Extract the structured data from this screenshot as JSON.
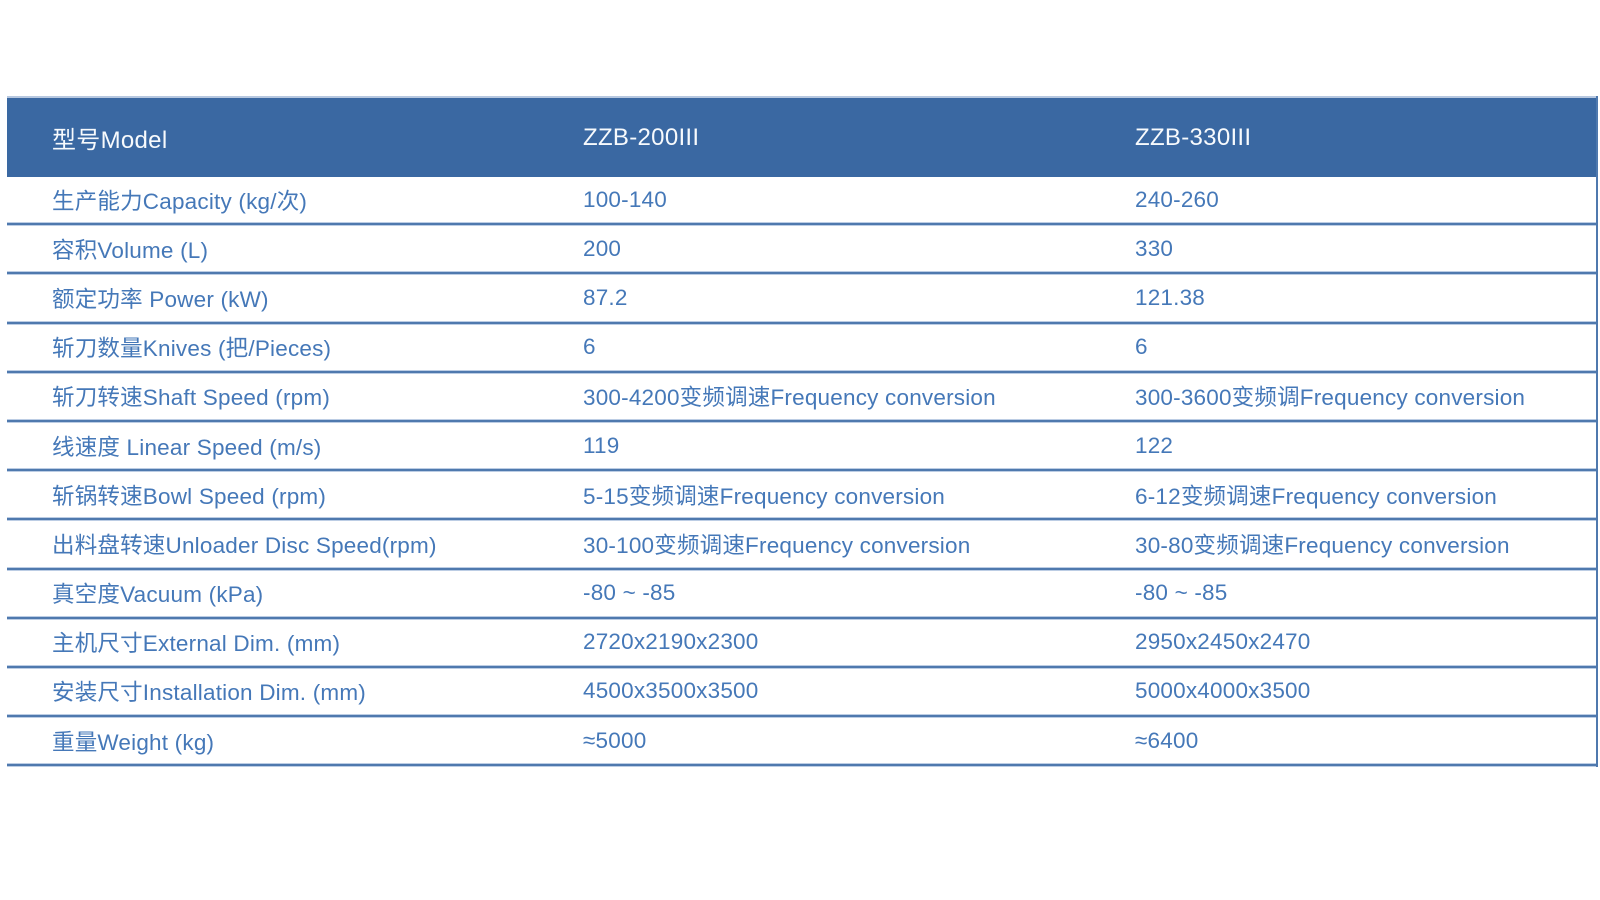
{
  "table": {
    "header": {
      "model_label": "型号Model",
      "model_1": "ZZB-200III",
      "model_2": "ZZB-330III"
    },
    "rows": [
      {
        "label": "生产能力Capacity (kg/次)",
        "v1": "100-140",
        "v2": "240-260"
      },
      {
        "label": "容积Volume (L)",
        "v1": "200",
        "v2": "330"
      },
      {
        "label": "额定功率 Power (kW)",
        "v1": "87.2",
        "v2": "121.38"
      },
      {
        "label": "斩刀数量Knives (把/Pieces)",
        "v1": "6",
        "v2": "6"
      },
      {
        "label": "斩刀转速Shaft Speed (rpm)",
        "v1": "300-4200变频调速Frequency conversion",
        "v2": "300-3600变频调Frequency conversion"
      },
      {
        "label": "线速度 Linear Speed (m/s)",
        "v1": "119",
        "v2": "122"
      },
      {
        "label": "斩锅转速Bowl Speed (rpm)",
        "v1": "5-15变频调速Frequency conversion",
        "v2": "6-12变频调速Frequency conversion"
      },
      {
        "label": "出料盘转速Unloader Disc Speed(rpm)",
        "v1": "30-100变频调速Frequency conversion",
        "v2": "30-80变频调速Frequency conversion"
      },
      {
        "label": "真空度Vacuum (kPa)",
        "v1": "-80 ~ -85",
        "v2": "-80 ~ -85"
      },
      {
        "label": "主机尺寸External Dim. (mm)",
        "v1": "2720x2190x2300",
        "v2": "2950x2450x2470"
      },
      {
        "label": "安装尺寸Installation Dim. (mm)",
        "v1": "4500x3500x3500",
        "v2": "5000x4000x3500"
      },
      {
        "label": "重量Weight (kg)",
        "v1": "≈5000",
        "v2": "≈6400"
      }
    ],
    "colors": {
      "header_bg": "#3a68a2",
      "body_text": "#4578b8",
      "line_core": "#4f79ae",
      "line_halo": "#bccde4"
    }
  }
}
